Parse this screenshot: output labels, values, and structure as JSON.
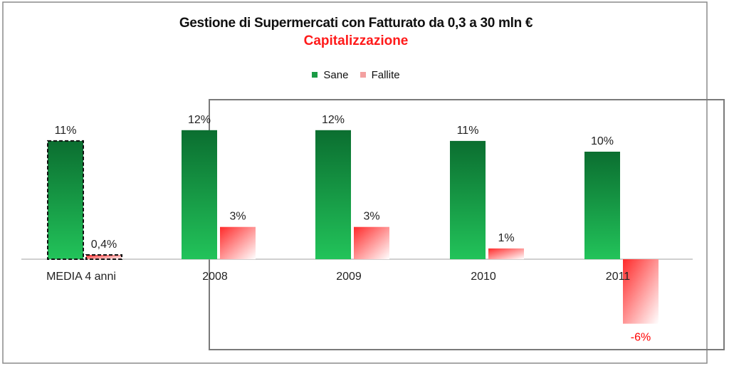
{
  "chart_data": {
    "type": "bar",
    "title": "Gestione di Supermercati con Fatturato da 0,3 a 30 mln €",
    "subtitle": "Capitalizzazione",
    "categories": [
      "MEDIA 4 anni",
      "2008",
      "2009",
      "2010",
      "2011"
    ],
    "series": [
      {
        "name": "Sane",
        "values": [
          11,
          12,
          12,
          11,
          10
        ],
        "labels": [
          "11%",
          "12%",
          "12%",
          "11%",
          "10%"
        ]
      },
      {
        "name": "Fallite",
        "values": [
          0.4,
          3,
          3,
          1,
          -6
        ],
        "labels": [
          "0,4%",
          "3%",
          "3%",
          "1%",
          "-6%"
        ]
      }
    ],
    "ylim": [
      -7,
      14
    ],
    "grid": false,
    "legend": "top-center",
    "colors": {
      "sane_dark": "#0b6e30",
      "sane_light": "#22c35a",
      "fallite_dark": "#ff2a2a",
      "fallite_light": "#ffffff",
      "negative_label": "#ff0000"
    }
  }
}
